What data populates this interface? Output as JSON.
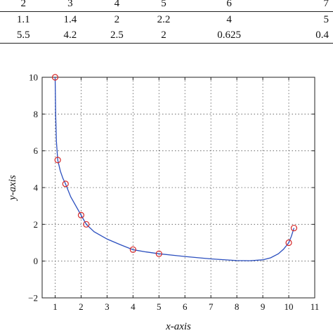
{
  "table": {
    "rows": [
      [
        "2",
        "3",
        "4",
        "5",
        "6",
        "7"
      ],
      [
        "1.1",
        "1.4",
        "2",
        "2.2",
        "4",
        "5"
      ],
      [
        "5.5",
        "4.2",
        "2.5",
        "2",
        "0.625",
        "0.4"
      ]
    ]
  },
  "chart_data": {
    "type": "line",
    "xlabel": "x-axis",
    "ylabel": "y-axis",
    "xlim": [
      0.5,
      11
    ],
    "ylim": [
      -2,
      10
    ],
    "xticks": [
      "1",
      "2",
      "3",
      "4",
      "5",
      "6",
      "7",
      "8",
      "9",
      "10",
      "11"
    ],
    "yticks": [
      "−2",
      "0",
      "2",
      "4",
      "6",
      "8",
      "10"
    ],
    "grid": true,
    "series": [
      {
        "kind": "curve",
        "color": "#2b4fbf",
        "x": [
          1.0,
          1.02,
          1.05,
          1.1,
          1.2,
          1.3,
          1.4,
          1.6,
          1.8,
          2.0,
          2.2,
          2.5,
          3.0,
          3.5,
          4.0,
          4.5,
          5.0,
          6.0,
          7.0,
          8.0,
          8.5,
          9.0,
          9.3,
          9.6,
          9.8,
          10.0,
          10.1,
          10.2
        ],
        "y": [
          10.0,
          8.0,
          6.5,
          5.5,
          4.9,
          4.5,
          4.2,
          3.5,
          3.0,
          2.5,
          2.0,
          1.6,
          1.2,
          0.9,
          0.62,
          0.5,
          0.4,
          0.25,
          0.12,
          0.03,
          0.02,
          0.07,
          0.18,
          0.4,
          0.65,
          1.0,
          1.35,
          1.8
        ]
      },
      {
        "kind": "markers",
        "color": "#d62828",
        "x": [
          1.0,
          1.1,
          1.4,
          2.0,
          2.2,
          4.0,
          5.0,
          10.0,
          10.2
        ],
        "y": [
          10.0,
          5.5,
          4.2,
          2.5,
          2.0,
          0.625,
          0.4,
          1.0,
          1.8
        ]
      }
    ]
  }
}
